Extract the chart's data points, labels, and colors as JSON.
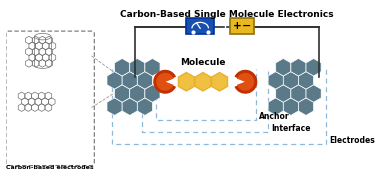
{
  "title": "Carbon-Based Single Molecule Electronics",
  "title_fontsize": 6.5,
  "label_molecule": "Molecule",
  "label_anchor": "Anchor",
  "label_interface": "Interface",
  "label_electrodes": "Electrodes",
  "label_carbon": "Carbon-based electrodes",
  "bg_color": "#ffffff",
  "hex_dark": "#5a7a8a",
  "hex_mid": "#6a8a9a",
  "hex_light": "#8ab0c0",
  "mol_yellow": "#f0c040",
  "mol_yellow2": "#e8b030",
  "anchor_orange": "#e05010",
  "anchor_dark": "#c03000",
  "battery_yellow": "#e8b820",
  "meter_blue": "#1850b0",
  "dashed_blue": "#90b8d8",
  "wire_color": "#303030",
  "carbon_ec": "#707070"
}
